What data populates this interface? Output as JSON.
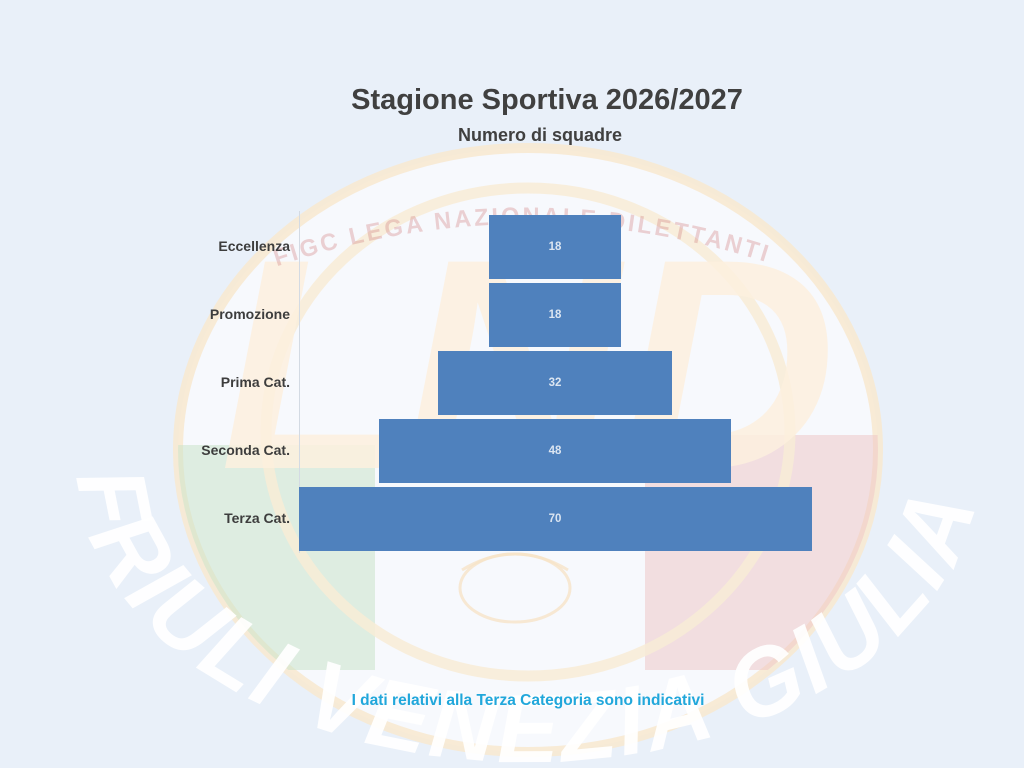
{
  "header": {
    "title": "Stagione Sportiva 2026/2027",
    "subtitle": "Numero di squadre"
  },
  "footnote": {
    "text": "I dati relativi alla Terza Categoria sono indicativi"
  },
  "watermark": {
    "region_text": "FRIULI VENEZIA GIULIA",
    "federation_text": "FIGC LEGA NAZIONALE DILETTANTI",
    "logo_acronym": "LND"
  },
  "colors": {
    "background": "#e9f0f9",
    "bar": "#4f81bd",
    "bar_value_label": "#dbe5f1",
    "category_label": "#3d3d3d",
    "title_text": "#404040",
    "footnote_text": "#21a7db",
    "axis_line": "#d3dae3"
  },
  "chart_data": {
    "type": "bar",
    "orientation": "horizontal-centered-pyramid",
    "title": "Stagione Sportiva 2026/2027",
    "subtitle": "Numero di squadre",
    "categories": [
      "Eccellenza",
      "Promozione",
      "Prima Cat.",
      "Seconda Cat.",
      "Terza Cat."
    ],
    "values": [
      18,
      18,
      32,
      48,
      70
    ],
    "value_labels_shown": true,
    "xlim": [
      0,
      70
    ],
    "legend": false,
    "gridlines": false,
    "note": "I dati relativi alla Terza Categoria sono indicativi"
  }
}
